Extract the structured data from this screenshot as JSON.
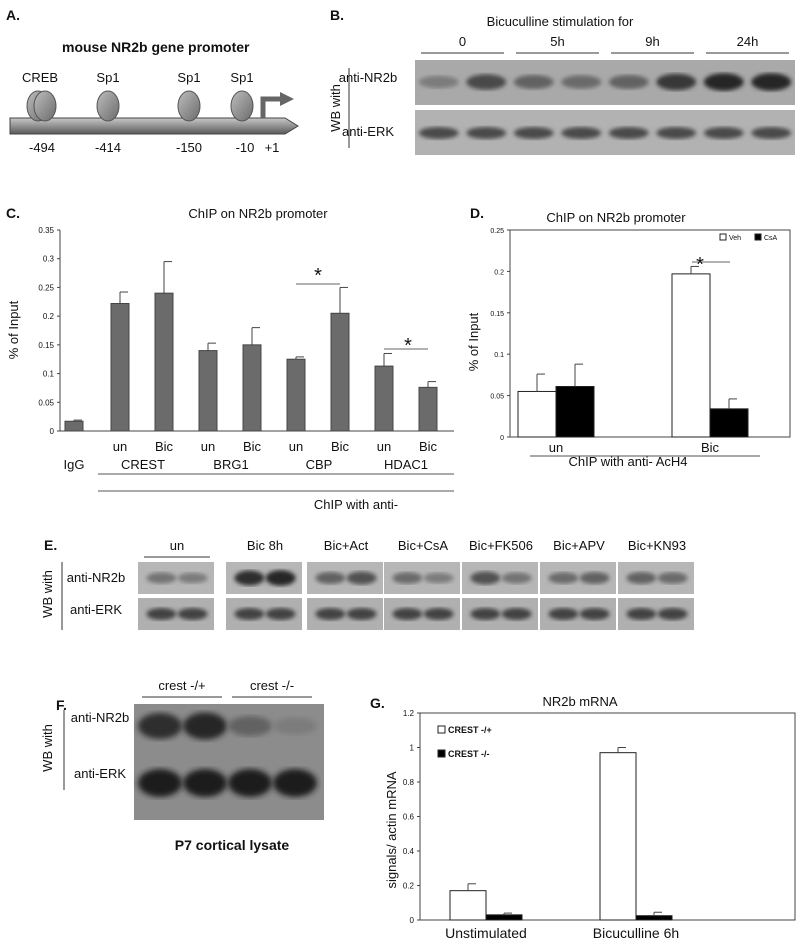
{
  "panel_a": {
    "letter": "A.",
    "title": "mouse NR2b gene promoter",
    "elements": [
      {
        "label": "CREB",
        "pos": "-494"
      },
      {
        "label": "Sp1",
        "pos": "-414"
      },
      {
        "label": "Sp1",
        "pos": "-150"
      },
      {
        "label": "Sp1",
        "pos": "-10"
      }
    ],
    "tss": "+1"
  },
  "panel_b": {
    "letter": "B.",
    "title": "Bicuculline stimulation for",
    "timepoints": [
      "0",
      "5h",
      "9h",
      "24h"
    ],
    "side_label": "WB with",
    "rows": [
      "anti-NR2b",
      "anti-ERK"
    ],
    "nr2b_intensity": [
      0.45,
      0.75,
      0.6,
      0.55,
      0.6,
      0.85,
      0.95,
      0.95
    ]
  },
  "panel_c": {
    "letter": "C.",
    "chart_data": {
      "type": "bar",
      "title": "ChIP on NR2b promoter",
      "ylabel": "% of Input",
      "xlabel": "ChIP with anti-",
      "ylim": [
        0,
        0.35
      ],
      "yticks": [
        "0",
        "0.05",
        "0.1",
        "0.15",
        "0.2",
        "0.25",
        "0.3",
        "0.35"
      ],
      "ytick_values": [
        0,
        0.05,
        0.1,
        0.15,
        0.2,
        0.25,
        0.3,
        0.35
      ],
      "categories": [
        "IgG",
        "un",
        "Bic",
        "un",
        "Bic",
        "un",
        "Bic",
        "un",
        "Bic"
      ],
      "values": [
        0.017,
        0.222,
        0.24,
        0.14,
        0.15,
        0.125,
        0.205,
        0.113,
        0.076
      ],
      "errors": [
        0.002,
        0.02,
        0.055,
        0.013,
        0.03,
        0.004,
        0.045,
        0.022,
        0.01
      ],
      "groups": [
        "IgG",
        "CREST",
        "BRG1",
        "CBP",
        "HDAC1"
      ],
      "significance": [
        "*",
        "*"
      ]
    }
  },
  "panel_d": {
    "letter": "D.",
    "chart_data": {
      "type": "bar",
      "title": "ChIP on NR2b promoter",
      "ylabel": "% of Input",
      "xlabel": "ChIP with anti- AcH4",
      "ylim": [
        0,
        0.25
      ],
      "yticks": [
        "0",
        "0.05",
        "0.1",
        "0.15",
        "0.2",
        "0.25"
      ],
      "ytick_values": [
        0,
        0.05,
        0.1,
        0.15,
        0.2,
        0.25
      ],
      "categories": [
        "un",
        "Bic"
      ],
      "series": [
        {
          "name": "Veh",
          "values": [
            0.055,
            0.197
          ],
          "errors": [
            0.021,
            0.009
          ],
          "color": "#ffffff"
        },
        {
          "name": "CsA",
          "values": [
            0.061,
            0.034
          ],
          "errors": [
            0.027,
            0.012
          ],
          "color": "#000000"
        }
      ],
      "significance": [
        "*"
      ],
      "legend": "top-right"
    }
  },
  "panel_e": {
    "letter": "E.",
    "conditions": [
      "un",
      "Bic 8h",
      "Bic+Act",
      "Bic+CsA",
      "Bic+FK506",
      "Bic+APV",
      "Bic+KN93"
    ],
    "side_label": "WB with",
    "rows": [
      "anti-NR2b",
      "anti-ERK"
    ],
    "nr2b_intensity": [
      0.5,
      0.45,
      0.9,
      0.95,
      0.6,
      0.7,
      0.55,
      0.45,
      0.7,
      0.5,
      0.55,
      0.6,
      0.6,
      0.55
    ]
  },
  "panel_f": {
    "letter": "F.",
    "genotypes": [
      "crest -/+",
      "crest -/-"
    ],
    "side_label": "WB with",
    "rows": [
      "anti-NR2b",
      "anti-ERK"
    ],
    "caption": "P7 cortical lysate",
    "nr2b_intensity": [
      0.8,
      0.85,
      0.5,
      0.35
    ]
  },
  "panel_g": {
    "letter": "G.",
    "chart_data": {
      "type": "bar",
      "title": "NR2b mRNA",
      "ylabel": "signals/ actin mRNA",
      "ylim": [
        0,
        1.2
      ],
      "yticks": [
        "0",
        "0.2",
        "0.4",
        "0.6",
        "0.8",
        "1",
        "1.2"
      ],
      "ytick_values": [
        0,
        0.2,
        0.4,
        0.6,
        0.8,
        1.0,
        1.2
      ],
      "categories": [
        "Unstimulated",
        "Bicuculline 6h"
      ],
      "series": [
        {
          "name": "CREST -/+",
          "values": [
            0.17,
            0.97
          ],
          "errors": [
            0.04,
            0.03
          ],
          "color": "#ffffff"
        },
        {
          "name": "CREST -/-",
          "values": [
            0.03,
            0.025
          ],
          "errors": [
            0.01,
            0.02
          ],
          "color": "#000000"
        }
      ],
      "legend": "top-left"
    }
  }
}
